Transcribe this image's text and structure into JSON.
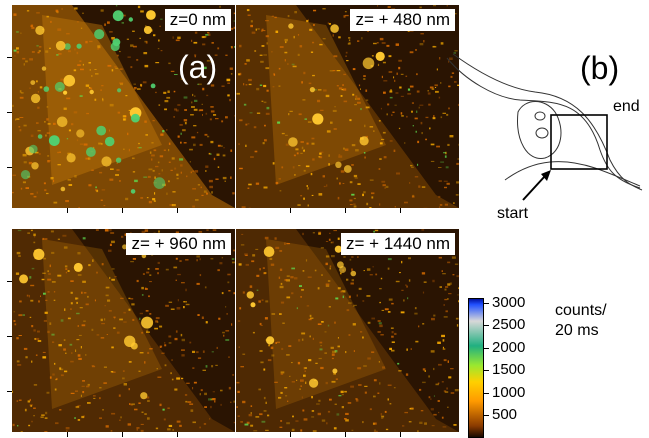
{
  "panel_a": {
    "label": "(a)",
    "images": [
      {
        "z_label": "z=0 nm"
      },
      {
        "z_label": "z= + 480 nm"
      },
      {
        "z_label": "z= + 960 nm"
      },
      {
        "z_label": "z= + 1440 nm"
      }
    ]
  },
  "panel_b": {
    "label": "(b)",
    "start_label": "start",
    "end_label": "end"
  },
  "colorbar": {
    "unit_line1": "counts/",
    "unit_line2": "20 ms",
    "ticks": [
      "3000",
      "2500",
      "2000",
      "1500",
      "1000",
      "500"
    ],
    "tick_values": [
      3000,
      2500,
      2000,
      1500,
      1000,
      500
    ],
    "max": 3100,
    "min": 0
  },
  "colors": {
    "low": "#1a0900",
    "mid": "#ffa000",
    "high": "#2050ff"
  }
}
